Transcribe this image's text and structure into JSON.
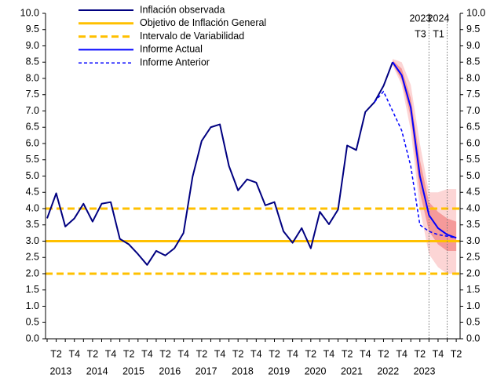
{
  "chart_data": {
    "type": "line",
    "categories": [
      null,
      "T2",
      null,
      "T4",
      null,
      "T2",
      null,
      "T4",
      null,
      "T2",
      null,
      "T4",
      null,
      "T2",
      null,
      "T4",
      null,
      "T2",
      null,
      "T4",
      null,
      "T2",
      null,
      "T4",
      null,
      "T2",
      null,
      "T4",
      null,
      "T2",
      null,
      "T4",
      null,
      "T2",
      null,
      "T4",
      null,
      "T2",
      null,
      "T4",
      null,
      "T2",
      null,
      "T4",
      null,
      "T2"
    ],
    "years": [
      "2013",
      "2014",
      "2015",
      "2016",
      "2017",
      "2018",
      "2019",
      "2020",
      "2021",
      "2022",
      "2023"
    ],
    "series": [
      {
        "name": "Inflación observada",
        "color": "#000080",
        "style": "solid",
        "values": [
          3.7,
          4.47,
          3.45,
          3.7,
          4.15,
          3.6,
          4.15,
          4.2,
          3.07,
          2.9,
          2.6,
          2.27,
          2.7,
          2.56,
          2.78,
          3.25,
          4.98,
          6.08,
          6.5,
          6.59,
          5.31,
          4.56,
          4.9,
          4.8,
          4.1,
          4.2,
          3.3,
          2.95,
          3.4,
          2.78,
          3.9,
          3.52,
          3.97,
          5.94,
          5.8,
          6.97,
          7.27,
          7.77,
          8.5,
          null,
          null,
          null,
          null,
          null,
          null,
          null
        ]
      },
      {
        "name": "Objetivo de Inflación General",
        "color": "#ffc000",
        "style": "level",
        "level": [
          3
        ]
      },
      {
        "name": "Intervalo de Variabilidad",
        "color": "#ffc000",
        "style": "level-dashed",
        "level": [
          2,
          4
        ]
      },
      {
        "name": "Informe Actual",
        "color": "#0000ff",
        "style": "solid",
        "values": [
          null,
          null,
          null,
          null,
          null,
          null,
          null,
          null,
          null,
          null,
          null,
          null,
          null,
          null,
          null,
          null,
          null,
          null,
          null,
          null,
          null,
          null,
          null,
          null,
          null,
          null,
          null,
          null,
          null,
          null,
          null,
          null,
          null,
          null,
          null,
          null,
          null,
          null,
          8.5,
          8.1,
          7.1,
          5.0,
          3.8,
          3.4,
          3.2,
          3.1
        ]
      },
      {
        "name": "Informe Anterior",
        "color": "#0000ff",
        "style": "dashed",
        "values": [
          null,
          null,
          null,
          null,
          null,
          null,
          null,
          null,
          null,
          null,
          null,
          null,
          null,
          null,
          null,
          null,
          null,
          null,
          null,
          null,
          null,
          null,
          null,
          null,
          null,
          null,
          null,
          null,
          null,
          null,
          null,
          null,
          null,
          null,
          null,
          null,
          7.27,
          7.6,
          7.0,
          6.4,
          5.3,
          3.5,
          3.3,
          3.2,
          3.15,
          3.1
        ]
      }
    ],
    "fan": [
      {
        "color": "#fcd5d5",
        "lower": [
          null,
          null,
          null,
          null,
          null,
          null,
          null,
          null,
          null,
          null,
          null,
          null,
          null,
          null,
          null,
          null,
          null,
          null,
          null,
          null,
          null,
          null,
          null,
          null,
          null,
          null,
          null,
          null,
          null,
          null,
          null,
          null,
          null,
          null,
          null,
          null,
          null,
          null,
          8.4,
          7.8,
          6.4,
          4.0,
          2.6,
          2.2,
          2.0,
          2.0
        ],
        "upper": [
          null,
          null,
          null,
          null,
          null,
          null,
          null,
          null,
          null,
          null,
          null,
          null,
          null,
          null,
          null,
          null,
          null,
          null,
          null,
          null,
          null,
          null,
          null,
          null,
          null,
          null,
          null,
          null,
          null,
          null,
          null,
          null,
          null,
          null,
          null,
          null,
          null,
          null,
          8.6,
          8.5,
          7.8,
          6.0,
          4.5,
          4.5,
          4.6,
          4.6
        ]
      },
      {
        "color": "#f59a9a",
        "lower": [
          null,
          null,
          null,
          null,
          null,
          null,
          null,
          null,
          null,
          null,
          null,
          null,
          null,
          null,
          null,
          null,
          null,
          null,
          null,
          null,
          null,
          null,
          null,
          null,
          null,
          null,
          null,
          null,
          null,
          null,
          null,
          null,
          null,
          null,
          null,
          null,
          null,
          null,
          8.45,
          7.95,
          6.8,
          4.5,
          3.3,
          2.9,
          2.7,
          2.7
        ],
        "upper": [
          null,
          null,
          null,
          null,
          null,
          null,
          null,
          null,
          null,
          null,
          null,
          null,
          null,
          null,
          null,
          null,
          null,
          null,
          null,
          null,
          null,
          null,
          null,
          null,
          null,
          null,
          null,
          null,
          null,
          null,
          null,
          null,
          null,
          null,
          null,
          null,
          null,
          null,
          8.55,
          8.3,
          7.4,
          5.5,
          4.2,
          3.9,
          3.7,
          3.6
        ]
      }
    ],
    "annotations": [
      {
        "year": "2023",
        "quarter": "T3"
      },
      {
        "year": "2024",
        "quarter": "T1"
      }
    ],
    "ylim": [
      0,
      10
    ],
    "yticks": [
      {
        "value": 0,
        "label": "0.0"
      },
      {
        "value": 0.5,
        "label": "0.5"
      },
      {
        "value": 1,
        "label": "1.0"
      },
      {
        "value": 1.5,
        "label": "1.5"
      },
      {
        "value": 2,
        "label": "2.0"
      },
      {
        "value": 2.5,
        "label": "2.5"
      },
      {
        "value": 3,
        "label": "3.0"
      },
      {
        "value": 3.5,
        "label": "3.5"
      },
      {
        "value": 4,
        "label": "4.0"
      },
      {
        "value": 4.5,
        "label": "4.5"
      },
      {
        "value": 5,
        "label": "5.0"
      },
      {
        "value": 5.5,
        "label": "5.5"
      },
      {
        "value": 6,
        "label": "6.0"
      },
      {
        "value": 6.5,
        "label": "6.5"
      },
      {
        "value": 7,
        "label": "7.0"
      },
      {
        "value": 7.5,
        "label": "7.5"
      },
      {
        "value": 8,
        "label": "8.0"
      },
      {
        "value": 8.5,
        "label": "8.5"
      },
      {
        "value": 9,
        "label": "9.0"
      },
      {
        "value": 9.5,
        "label": "9.5"
      },
      {
        "value": 10,
        "label": "10.0"
      }
    ],
    "y2lim": [
      0,
      10
    ],
    "y2ticks": [
      {
        "value": 0,
        "label": "0.0"
      },
      {
        "value": 0.5,
        "label": "0.5"
      },
      {
        "value": 1,
        "label": "1.0"
      },
      {
        "value": 1.5,
        "label": "1.5"
      },
      {
        "value": 2,
        "label": "2.0"
      },
      {
        "value": 2.5,
        "label": "2.5"
      },
      {
        "value": 3,
        "label": "3.0"
      },
      {
        "value": 3.5,
        "label": "3.5"
      },
      {
        "value": 4,
        "label": "4.0"
      },
      {
        "value": 4.5,
        "label": "4.5"
      },
      {
        "value": 5,
        "label": "5.0"
      },
      {
        "value": 5.5,
        "label": "5.5"
      },
      {
        "value": 6,
        "label": "6.0"
      },
      {
        "value": 6.5,
        "label": "6.5"
      },
      {
        "value": 7,
        "label": "7.0"
      },
      {
        "value": 7.5,
        "label": "7.5"
      },
      {
        "value": 8,
        "label": "8.0"
      },
      {
        "value": 8.5,
        "label": "8.5"
      },
      {
        "value": 9,
        "label": "9.0"
      },
      {
        "value": 9.5,
        "label": "9.5"
      },
      {
        "value": 10,
        "label": "10.0"
      }
    ],
    "grid": false,
    "legend": "top-left"
  }
}
